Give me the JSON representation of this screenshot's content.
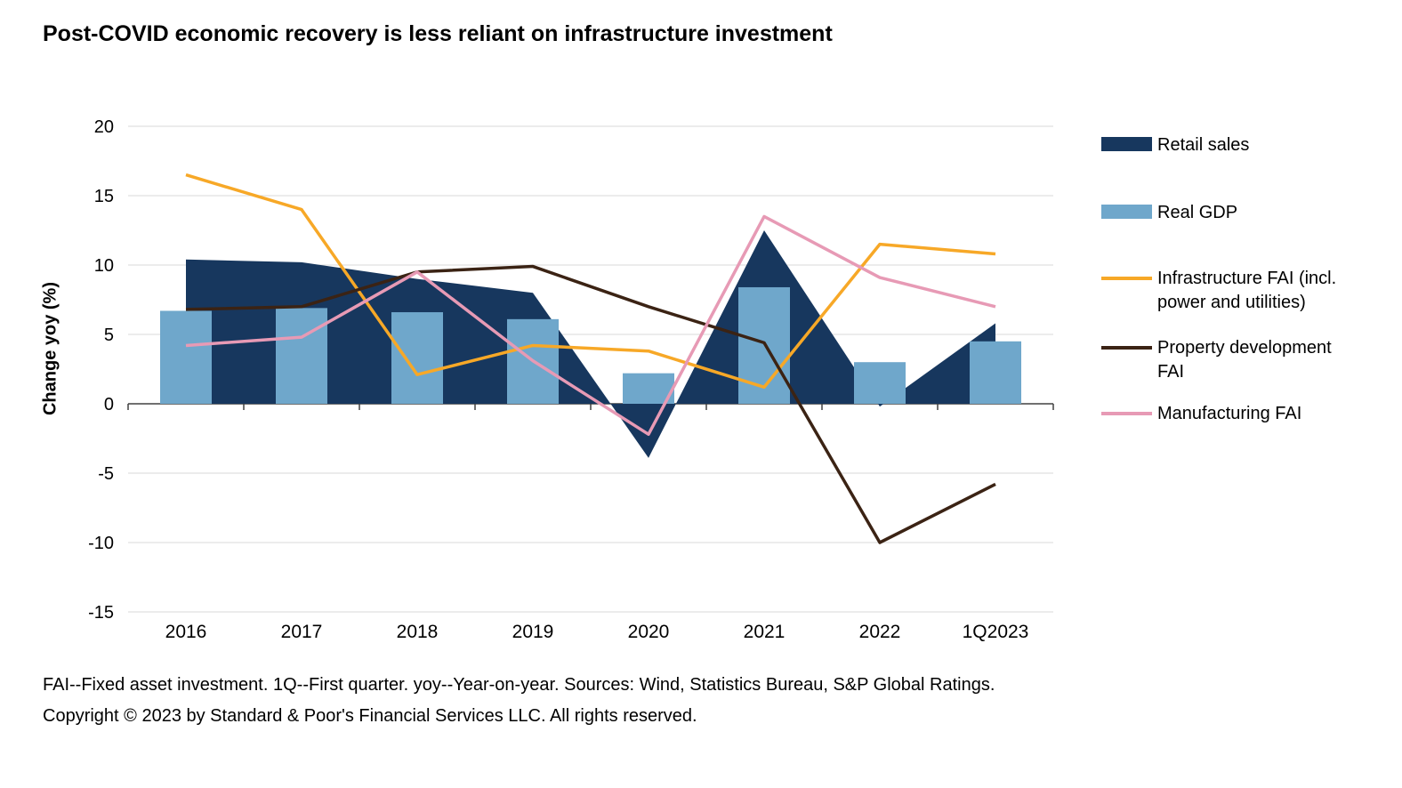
{
  "title": "Post-COVID economic recovery is less reliant on infrastructure investment",
  "y_axis": {
    "label": "Change yoy (%)"
  },
  "legend": {
    "items": [
      {
        "line1": "Retail sales",
        "line2": "",
        "swatch": "bar",
        "series_index": 0
      },
      {
        "line1": "Real GDP",
        "line2": "",
        "swatch": "bar",
        "series_index": 1
      },
      {
        "line1": "Infrastructure FAI (incl.",
        "line2": "power and utilities)",
        "swatch": "line",
        "series_index": 2
      },
      {
        "line1": "Property development",
        "line2": "FAI",
        "swatch": "line",
        "series_index": 3
      },
      {
        "line1": "Manufacturing FAI",
        "line2": "",
        "swatch": "line",
        "series_index": 4
      }
    ]
  },
  "footnote": "FAI--Fixed asset investment. 1Q--First quarter. yoy--Year-on-year. Sources: Wind, Statistics Bureau, S&P Global Ratings.",
  "copyright": "Copyright © 2023 by Standard & Poor's Financial Services LLC. All rights reserved.",
  "chart_data": {
    "type": "combo",
    "title": "Post-COVID economic recovery is less reliant on infrastructure investment",
    "xlabel": "",
    "ylabel": "Change yoy (%)",
    "ylim": [
      -15,
      20
    ],
    "ytick_step": 5,
    "grid": true,
    "legend_position": "right",
    "categories": [
      "2016",
      "2017",
      "2018",
      "2019",
      "2020",
      "2021",
      "2022",
      "1Q2023"
    ],
    "series": [
      {
        "name": "Retail sales",
        "type": "area",
        "color": "#17375e",
        "values": [
          10.4,
          10.2,
          9.0,
          8.0,
          -3.9,
          12.5,
          -0.2,
          5.8
        ]
      },
      {
        "name": "Real GDP",
        "type": "bar",
        "color": "#6fa7cb",
        "values": [
          6.7,
          6.9,
          6.6,
          6.1,
          2.2,
          8.4,
          3.0,
          4.5
        ]
      },
      {
        "name": "Infrastructure FAI (incl. power and utilities)",
        "type": "line",
        "color": "#f7a827",
        "values": [
          16.5,
          14.0,
          2.1,
          4.2,
          3.8,
          1.2,
          11.5,
          10.8
        ]
      },
      {
        "name": "Property development FAI",
        "type": "line",
        "color": "#3b2314",
        "values": [
          6.8,
          7.0,
          9.5,
          9.9,
          7.0,
          4.4,
          -10.0,
          -5.8
        ]
      },
      {
        "name": "Manufacturing FAI",
        "type": "line",
        "color": "#e79ab5",
        "values": [
          4.2,
          4.8,
          9.5,
          3.1,
          -2.2,
          13.5,
          9.1,
          7.0
        ]
      }
    ]
  }
}
